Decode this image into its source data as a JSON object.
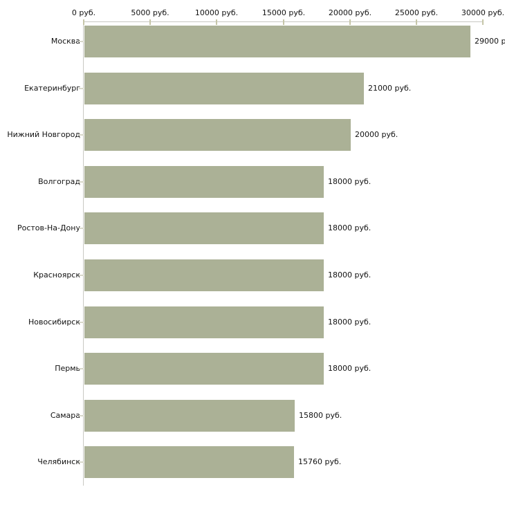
{
  "chart_data": {
    "type": "bar",
    "orientation": "horizontal",
    "title": "",
    "xlabel": "",
    "ylabel": "",
    "grid": false,
    "legend": false,
    "categories": [
      "Москва",
      "Екатеринбург",
      "Нижний Новгород",
      "Волгоград",
      "Ростов-На-Дону",
      "Красноярск",
      "Новосибирск",
      "Пермь",
      "Самара",
      "Челябинск"
    ],
    "values": [
      29000,
      21000,
      20000,
      18000,
      18000,
      18000,
      18000,
      18000,
      15800,
      15760
    ],
    "value_labels": [
      "29000 р",
      "21000 руб.",
      "20000 руб.",
      "18000 руб.",
      "18000 руб.",
      "18000 руб.",
      "18000 руб.",
      "18000 руб.",
      "15800 руб.",
      "15760 руб."
    ],
    "x_axis": {
      "position": "top",
      "min": 0,
      "max": 30000,
      "ticks": [
        0,
        5000,
        10000,
        15000,
        20000,
        25000,
        30000
      ],
      "tick_labels": [
        "0 руб.",
        "5000 руб.",
        "10000 руб.",
        "15000 руб.",
        "20000 руб.",
        "25000 руб.",
        "30000 руб."
      ]
    },
    "colors": {
      "bar": "#abb196",
      "axis_line": "#c8c8c2",
      "x_tick_mark": "#c6c6a8",
      "category_tick_mark": "#d8d8ca",
      "text": "#111111",
      "background": "#ffffff"
    }
  }
}
